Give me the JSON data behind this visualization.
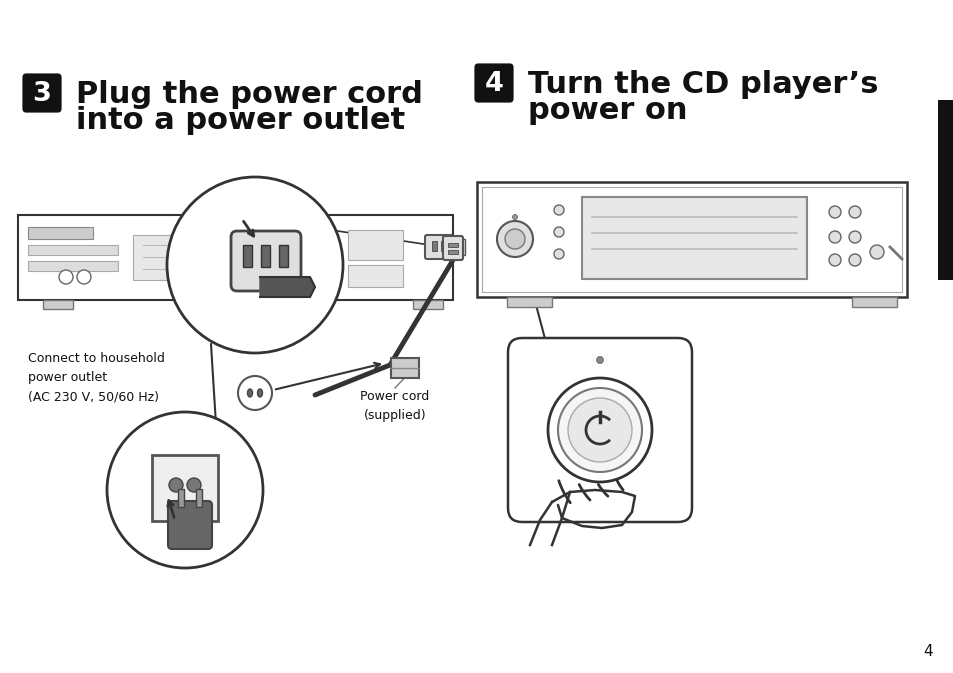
{
  "bg_color": "#ffffff",
  "step3_title_line1": "Plug the power cord",
  "step3_title_line2": "into a power outlet",
  "step4_title_line1": "Turn the CD player’s",
  "step4_title_line2": "power on",
  "step3_num": "3",
  "step4_num": "4",
  "label_connect": "Connect to household\npower outlet\n(AC 230 V, 50/60 Hz)",
  "label_power_cord": "Power cord\n(supplied)",
  "page_num": "4",
  "title_fontsize": 22,
  "label_fontsize": 9,
  "badge_size": 26,
  "tab_color": "#111111",
  "edge_color": "#333333",
  "line_color": "#555555"
}
